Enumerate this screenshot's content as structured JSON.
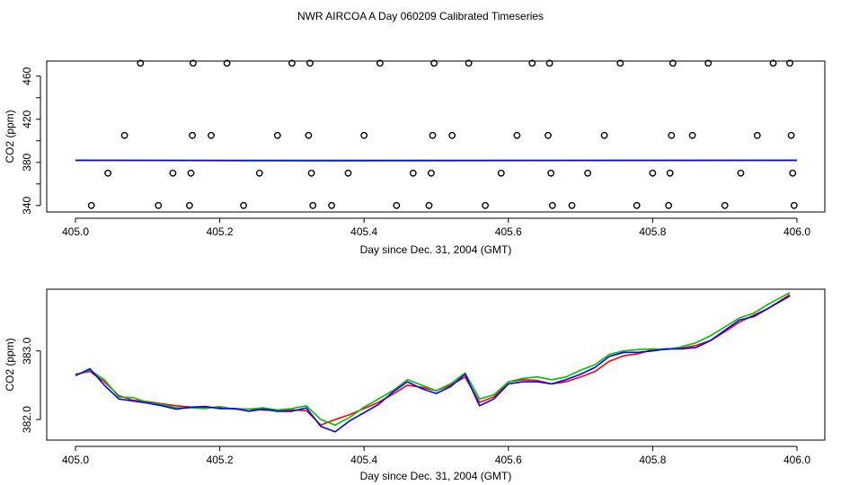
{
  "title": "NWR AIRCOA A  Day 060209  Calibrated Timeseries",
  "colors": {
    "series1": "#ff0000",
    "series2": "#00c000",
    "series3": "#0000ff",
    "axis": "#000000"
  },
  "chart_data": [
    {
      "type": "scatter",
      "xlabel": "Day since Dec. 31, 2004 (GMT)",
      "ylabel": "CO2 (ppm)",
      "xlim": [
        405.0,
        406.0
      ],
      "ylim": [
        334,
        474
      ],
      "xticks": [
        "405.0",
        "405.2",
        "405.4",
        "405.6",
        "405.8",
        "406.0"
      ],
      "yticks": [
        "340",
        "380",
        "420",
        "460"
      ],
      "grid": false,
      "markers": {
        "x": [
          405.022,
          405.045,
          405.068,
          405.09,
          405.115,
          405.135,
          405.158,
          405.16,
          405.162,
          405.163,
          405.188,
          405.21,
          405.233,
          405.255,
          405.28,
          405.3,
          405.323,
          405.325,
          405.327,
          405.329,
          405.355,
          405.378,
          405.4,
          405.422,
          405.445,
          405.468,
          405.49,
          405.493,
          405.495,
          405.497,
          405.522,
          405.545,
          405.568,
          405.59,
          405.612,
          405.633,
          405.655,
          405.657,
          405.659,
          405.661,
          405.688,
          405.71,
          405.733,
          405.755,
          405.778,
          405.8,
          405.822,
          405.824,
          405.826,
          405.828,
          405.855,
          405.877,
          405.9,
          405.922,
          405.945,
          405.967,
          405.99,
          405.992,
          405.994,
          405.996
        ],
        "y": [
          340,
          370,
          405,
          472,
          340,
          370,
          340,
          370,
          405,
          472,
          405,
          472,
          340,
          370,
          405,
          472,
          405,
          472,
          370,
          340,
          340,
          370,
          405,
          472,
          340,
          370,
          340,
          370,
          405,
          472,
          405,
          472,
          340,
          370,
          405,
          472,
          405,
          472,
          370,
          340,
          340,
          370,
          405,
          472,
          340,
          370,
          340,
          370,
          405,
          472,
          405,
          472,
          340,
          370,
          405,
          472,
          472,
          405,
          370,
          340
        ]
      },
      "series": [
        {
          "name": "",
          "color": "#ff0000",
          "x": [
            405.0,
            406.0
          ],
          "y": [
            381.8,
            381.8
          ]
        },
        {
          "name": "",
          "color": "#00c000",
          "x": [
            405.0,
            406.0
          ],
          "y": [
            381.9,
            381.9
          ]
        },
        {
          "name": "",
          "color": "#0000ff",
          "x": [
            405.0,
            405.35,
            405.37,
            406.0
          ],
          "y": [
            382.0,
            381.5,
            381.6,
            382.0
          ]
        }
      ]
    },
    {
      "type": "line",
      "xlabel": "Day since Dec. 31, 2004 (GMT)",
      "ylabel": "CO2 (ppm)",
      "xlim": [
        405.0,
        406.0
      ],
      "ylim": [
        381.7,
        383.9
      ],
      "xticks": [
        "405.0",
        "405.2",
        "405.4",
        "405.6",
        "405.8",
        "406.0"
      ],
      "yticks": [
        "382.0",
        "383.0"
      ],
      "grid": false,
      "series": [
        {
          "name": "",
          "color": "#ff0000",
          "x": [
            405.0,
            405.02,
            405.04,
            405.06,
            405.08,
            405.1,
            405.12,
            405.14,
            405.16,
            405.18,
            405.2,
            405.22,
            405.24,
            405.26,
            405.28,
            405.3,
            405.32,
            405.34,
            405.36,
            405.38,
            405.4,
            405.42,
            405.44,
            405.46,
            405.48,
            405.5,
            405.52,
            405.54,
            405.56,
            405.58,
            405.6,
            405.62,
            405.64,
            405.66,
            405.68,
            405.7,
            405.72,
            405.74,
            405.76,
            405.78,
            405.8,
            405.82,
            405.84,
            405.86,
            405.88,
            405.9,
            405.92,
            405.94,
            405.96,
            405.99
          ],
          "y": [
            382.66,
            382.7,
            382.55,
            382.35,
            382.28,
            382.26,
            382.23,
            382.2,
            382.18,
            382.18,
            382.17,
            382.16,
            382.15,
            382.14,
            382.13,
            382.14,
            382.13,
            381.92,
            382.0,
            382.07,
            382.16,
            382.25,
            382.37,
            382.5,
            382.47,
            382.42,
            382.5,
            382.62,
            382.25,
            382.33,
            382.55,
            382.58,
            382.57,
            382.52,
            382.55,
            382.62,
            382.7,
            382.85,
            382.93,
            382.96,
            383.02,
            383.03,
            383.04,
            383.08,
            383.15,
            383.28,
            383.42,
            383.52,
            383.62,
            383.82
          ]
        },
        {
          "name": "",
          "color": "#00c000",
          "x": [
            405.0,
            405.02,
            405.04,
            405.06,
            405.08,
            405.1,
            405.12,
            405.14,
            405.16,
            405.18,
            405.2,
            405.22,
            405.24,
            405.26,
            405.28,
            405.3,
            405.32,
            405.34,
            405.36,
            405.38,
            405.4,
            405.42,
            405.44,
            405.46,
            405.48,
            405.5,
            405.52,
            405.54,
            405.56,
            405.58,
            405.6,
            405.62,
            405.64,
            405.66,
            405.68,
            405.7,
            405.72,
            405.74,
            405.76,
            405.78,
            405.8,
            405.82,
            405.84,
            405.86,
            405.88,
            405.9,
            405.92,
            405.94,
            405.96,
            405.99
          ],
          "y": [
            382.65,
            382.72,
            382.58,
            382.33,
            382.32,
            382.25,
            382.22,
            382.17,
            382.17,
            382.16,
            382.19,
            382.15,
            382.15,
            382.17,
            382.14,
            382.16,
            382.2,
            382.0,
            381.92,
            382.03,
            382.18,
            382.3,
            382.42,
            382.58,
            382.5,
            382.42,
            382.52,
            382.68,
            382.3,
            382.36,
            382.55,
            382.6,
            382.62,
            382.58,
            382.62,
            382.72,
            382.8,
            382.95,
            383.0,
            383.02,
            383.03,
            383.02,
            383.06,
            383.12,
            383.22,
            383.35,
            383.48,
            383.55,
            383.68,
            383.85
          ]
        },
        {
          "name": "",
          "color": "#0000ff",
          "x": [
            405.0,
            405.02,
            405.04,
            405.06,
            405.08,
            405.1,
            405.12,
            405.14,
            405.16,
            405.18,
            405.2,
            405.22,
            405.24,
            405.26,
            405.28,
            405.3,
            405.32,
            405.34,
            405.36,
            405.38,
            405.4,
            405.42,
            405.44,
            405.46,
            405.48,
            405.5,
            405.52,
            405.54,
            405.56,
            405.58,
            405.6,
            405.62,
            405.64,
            405.66,
            405.68,
            405.7,
            405.72,
            405.74,
            405.76,
            405.78,
            405.8,
            405.82,
            405.84,
            405.86,
            405.88,
            405.9,
            405.92,
            405.94,
            405.96,
            405.99
          ],
          "y": [
            382.64,
            382.74,
            382.5,
            382.3,
            382.27,
            382.24,
            382.2,
            382.15,
            382.18,
            382.19,
            382.16,
            382.16,
            382.12,
            382.15,
            382.12,
            382.12,
            382.17,
            381.9,
            381.82,
            381.98,
            382.1,
            382.22,
            382.4,
            382.55,
            382.45,
            382.38,
            382.48,
            382.66,
            382.2,
            382.3,
            382.52,
            382.55,
            382.55,
            382.52,
            382.58,
            382.66,
            382.76,
            382.92,
            382.98,
            382.98,
            383.0,
            383.03,
            383.03,
            383.05,
            383.15,
            383.3,
            383.45,
            383.5,
            383.62,
            383.8
          ]
        }
      ]
    }
  ]
}
